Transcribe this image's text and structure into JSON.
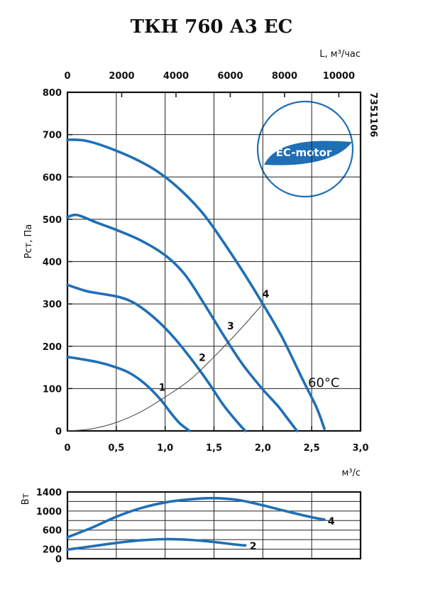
{
  "title": "ТКН 760 А3 ЕС",
  "code": "7351106",
  "badge_text": "EC-motor",
  "chart_data": [
    {
      "type": "line",
      "name": "pressure-chart",
      "title": "ТКН 760 А3 ЕС",
      "ylabel": "Pст, Па",
      "xlabel_bottom": "м³/с",
      "xlabel_top": "L, м³/час",
      "xlim": [
        0,
        3.0
      ],
      "ylim": [
        0,
        800
      ],
      "top_xlim": [
        0,
        10800
      ],
      "x_ticks": [
        "0",
        "0,5",
        "1,0",
        "1,5",
        "2,0",
        "2,5",
        "3,0"
      ],
      "x_tick_values": [
        0,
        0.5,
        1.0,
        1.5,
        2.0,
        2.5,
        3.0
      ],
      "top_x_ticks": [
        "0",
        "2000",
        "4000",
        "6000",
        "8000",
        "10000"
      ],
      "top_x_tick_values": [
        0,
        2000,
        4000,
        6000,
        8000,
        10000
      ],
      "y_ticks": [
        "0",
        "100",
        "200",
        "300",
        "400",
        "500",
        "600",
        "700",
        "800"
      ],
      "y_tick_values": [
        0,
        100,
        200,
        300,
        400,
        500,
        600,
        700,
        800
      ],
      "grid": true,
      "annotation": "60°C",
      "series": [
        {
          "name": "1",
          "points": [
            [
              0,
              175
            ],
            [
              0.3,
              163
            ],
            [
              0.5,
              150
            ],
            [
              0.65,
              135
            ],
            [
              0.8,
              110
            ],
            [
              0.95,
              75
            ],
            [
              1.05,
              45
            ],
            [
              1.15,
              18
            ],
            [
              1.25,
              0
            ]
          ]
        },
        {
          "name": "2",
          "points": [
            [
              0,
              345
            ],
            [
              0.2,
              330
            ],
            [
              0.4,
              322
            ],
            [
              0.55,
              315
            ],
            [
              0.7,
              300
            ],
            [
              0.9,
              265
            ],
            [
              1.1,
              218
            ],
            [
              1.3,
              160
            ],
            [
              1.45,
              112
            ],
            [
              1.6,
              60
            ],
            [
              1.75,
              18
            ],
            [
              1.82,
              0
            ]
          ]
        },
        {
          "name": "3",
          "points": [
            [
              0,
              505
            ],
            [
              0.1,
              510
            ],
            [
              0.3,
              492
            ],
            [
              0.5,
              475
            ],
            [
              0.75,
              450
            ],
            [
              1.0,
              415
            ],
            [
              1.2,
              370
            ],
            [
              1.4,
              300
            ],
            [
              1.6,
              225
            ],
            [
              1.8,
              155
            ],
            [
              2.0,
              98
            ],
            [
              2.15,
              60
            ],
            [
              2.25,
              30
            ],
            [
              2.35,
              0
            ]
          ]
        },
        {
          "name": "4",
          "points": [
            [
              0,
              688
            ],
            [
              0.2,
              685
            ],
            [
              0.5,
              662
            ],
            [
              0.8,
              630
            ],
            [
              1.0,
              600
            ],
            [
              1.2,
              560
            ],
            [
              1.4,
              510
            ],
            [
              1.6,
              445
            ],
            [
              1.8,
              375
            ],
            [
              2.0,
              300
            ],
            [
              2.2,
              220
            ],
            [
              2.4,
              125
            ],
            [
              2.55,
              55
            ],
            [
              2.63,
              5
            ]
          ]
        },
        {
          "name": "system",
          "points": [
            [
              0,
              0
            ],
            [
              0.25,
              5
            ],
            [
              0.5,
              20
            ],
            [
              0.75,
              45
            ],
            [
              1.0,
              80
            ],
            [
              1.25,
              120
            ],
            [
              1.5,
              175
            ],
            [
              1.75,
              235
            ],
            [
              2.0,
              300
            ]
          ]
        }
      ],
      "labels": [
        {
          "text": "1",
          "x": 0.97,
          "y": 95
        },
        {
          "text": "2",
          "x": 1.38,
          "y": 165
        },
        {
          "text": "3",
          "x": 1.67,
          "y": 240
        },
        {
          "text": "4",
          "x": 2.03,
          "y": 315
        }
      ]
    },
    {
      "type": "line",
      "name": "power-chart",
      "ylabel": "Вт",
      "xlim": [
        0,
        3.0
      ],
      "ylim": [
        0,
        1400
      ],
      "y_ticks": [
        "0",
        "200",
        "600",
        "1000",
        "1400"
      ],
      "y_tick_values": [
        0,
        200,
        600,
        1000,
        1400
      ],
      "grid_y_values": [
        0,
        200,
        400,
        600,
        800,
        1000,
        1200,
        1400
      ],
      "grid": true,
      "series": [
        {
          "name": "4",
          "points": [
            [
              0,
              450
            ],
            [
              0.25,
              650
            ],
            [
              0.5,
              880
            ],
            [
              0.75,
              1060
            ],
            [
              1.0,
              1180
            ],
            [
              1.25,
              1245
            ],
            [
              1.5,
              1270
            ],
            [
              1.75,
              1230
            ],
            [
              2.0,
              1120
            ],
            [
              2.25,
              990
            ],
            [
              2.5,
              870
            ],
            [
              2.63,
              820
            ]
          ]
        },
        {
          "name": "2",
          "points": [
            [
              0,
              190
            ],
            [
              0.25,
              260
            ],
            [
              0.5,
              330
            ],
            [
              0.75,
              385
            ],
            [
              1.0,
              410
            ],
            [
              1.25,
              395
            ],
            [
              1.5,
              350
            ],
            [
              1.75,
              290
            ],
            [
              1.82,
              280
            ]
          ]
        }
      ],
      "labels": [
        {
          "text": "4",
          "x": 2.7,
          "y": 790
        },
        {
          "text": "2",
          "x": 1.9,
          "y": 270
        }
      ]
    }
  ]
}
